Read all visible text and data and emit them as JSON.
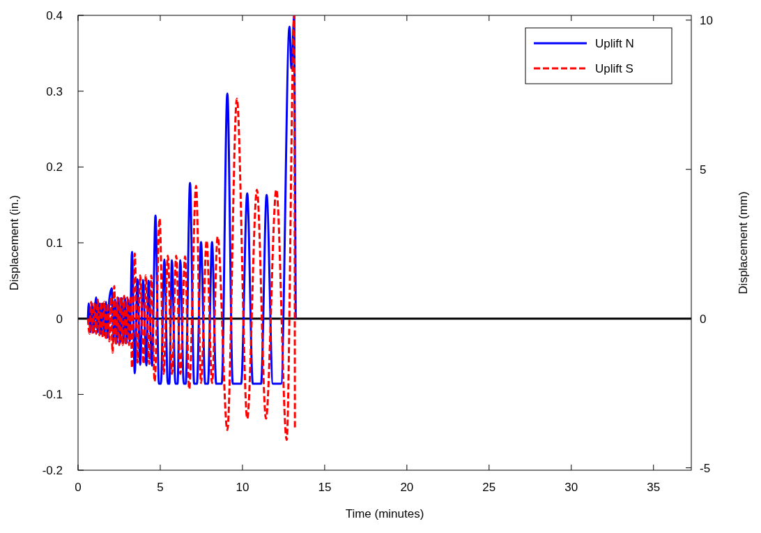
{
  "chart_data": {
    "type": "line",
    "xlabel": "Time (minutes)",
    "ylabel": "Displacement (in.)",
    "y2label": "Displacement (mm)",
    "xlim": [
      0,
      37.3
    ],
    "xticks": [
      0,
      5,
      10,
      15,
      20,
      25,
      30,
      35
    ],
    "ylim": [
      -0.2,
      0.4
    ],
    "yticks": [
      -0.2,
      -0.1,
      0,
      0.1,
      0.2,
      0.3,
      0.4
    ],
    "y2lim": [
      -5.08,
      10.16
    ],
    "y2ticks": [
      -5,
      0,
      5,
      10
    ],
    "legend": "top right",
    "grid": false,
    "ref_lines": [
      {
        "axis": "y",
        "value": 0,
        "color": "#000000",
        "line_style": "solid"
      }
    ],
    "series": [
      {
        "name": "Uplift N",
        "color": "#0000ff",
        "line_style": "solid",
        "x": [
          0.6,
          0.65,
          0.75,
          0.85,
          0.95,
          1.05,
          1.1,
          1.2,
          1.3,
          1.4,
          1.5,
          1.6,
          1.7,
          1.8,
          1.9,
          2.05,
          2.15,
          2.25,
          2.35,
          2.45,
          2.55,
          2.65,
          2.75,
          2.85,
          2.95,
          3.05,
          3.15,
          3.28,
          3.45,
          3.61,
          3.78,
          3.95,
          4.16,
          4.29,
          4.5,
          4.71,
          4.92,
          5.04,
          5.25,
          5.46,
          5.55,
          5.71,
          5.92,
          6.05,
          6.22,
          6.43,
          6.55,
          6.81,
          7.06,
          7.23,
          7.48,
          7.73,
          7.9,
          8.15,
          8.4,
          8.74,
          9.08,
          9.41,
          9.92,
          10.29,
          10.63,
          11.13,
          11.47,
          11.85,
          12.35,
          12.86,
          12.98,
          13.15,
          13.24
        ],
        "values": [
          0,
          0.02,
          -0.018,
          0.02,
          -0.018,
          0.02,
          0.028,
          -0.018,
          0.02,
          -0.02,
          0.02,
          -0.022,
          0.022,
          -0.025,
          0.025,
          0.04,
          -0.03,
          0.025,
          -0.032,
          0.027,
          -0.032,
          0.027,
          -0.032,
          0.027,
          -0.032,
          0.025,
          -0.03,
          0.088,
          -0.072,
          0.052,
          -0.061,
          0.051,
          -0.062,
          0.05,
          -0.062,
          0.136,
          -0.086,
          -0.086,
          0.078,
          -0.086,
          -0.086,
          0.077,
          -0.086,
          -0.086,
          0.077,
          -0.086,
          -0.086,
          0.179,
          -0.086,
          -0.086,
          0.101,
          -0.086,
          -0.086,
          0.101,
          -0.086,
          -0.086,
          0.297,
          -0.086,
          -0.086,
          0.165,
          -0.086,
          -0.086,
          0.163,
          -0.086,
          -0.086,
          0.385,
          0.33,
          0.4,
          0
        ]
      },
      {
        "name": "Uplift S",
        "color": "#ff0000",
        "line_style": "dashed",
        "x": [
          0.6,
          0.7,
          0.8,
          0.9,
          1.0,
          1.1,
          1.2,
          1.3,
          1.4,
          1.5,
          1.6,
          1.7,
          1.8,
          1.9,
          2.0,
          2.1,
          2.2,
          2.3,
          2.4,
          2.5,
          2.6,
          2.7,
          2.8,
          2.9,
          3.0,
          3.1,
          3.2,
          3.28,
          3.45,
          3.61,
          3.78,
          3.99,
          4.12,
          4.33,
          4.45,
          4.66,
          4.96,
          5.21,
          5.46,
          5.71,
          5.97,
          6.22,
          6.51,
          6.76,
          7.18,
          7.48,
          7.82,
          8.15,
          8.49,
          9.08,
          9.66,
          10.29,
          10.88,
          11.43,
          12.06,
          12.69,
          13.15,
          13.19
        ],
        "values": [
          0,
          -0.02,
          0.022,
          -0.02,
          0.02,
          -0.02,
          0.025,
          -0.022,
          0.022,
          -0.025,
          0.022,
          -0.028,
          0.02,
          -0.03,
          0.028,
          -0.045,
          0.043,
          -0.035,
          0.028,
          -0.035,
          0.028,
          -0.035,
          0.03,
          -0.035,
          0.028,
          -0.035,
          0.03,
          -0.065,
          0.086,
          -0.058,
          0.057,
          -0.06,
          0.057,
          -0.06,
          0.057,
          -0.083,
          0.132,
          -0.073,
          0.083,
          -0.073,
          0.083,
          -0.073,
          0.082,
          -0.093,
          0.175,
          -0.085,
          0.103,
          -0.085,
          0.108,
          -0.147,
          0.29,
          -0.132,
          0.17,
          -0.132,
          0.17,
          -0.16,
          0.4,
          -0.147
        ]
      }
    ]
  }
}
